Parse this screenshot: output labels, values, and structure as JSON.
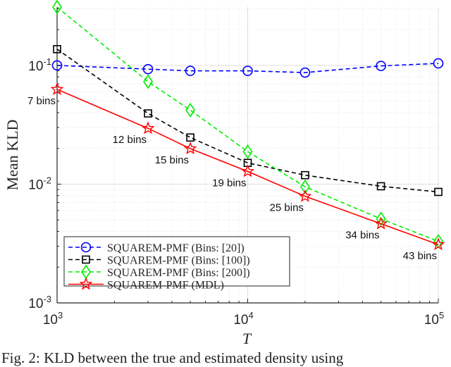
{
  "chart_data": {
    "type": "line",
    "xscale": "log",
    "yscale": "log",
    "xlabel": "T",
    "ylabel": "Mean KLD",
    "xlim": [
      1000,
      100000
    ],
    "ylim": [
      0.001,
      0.31
    ],
    "xticks": [
      {
        "v": 1000,
        "base": "10",
        "exp": "3"
      },
      {
        "v": 10000,
        "base": "10",
        "exp": "4"
      },
      {
        "v": 100000,
        "base": "10",
        "exp": "5"
      }
    ],
    "yticks": [
      {
        "v": 0.001,
        "base": "10",
        "exp": "-3"
      },
      {
        "v": 0.01,
        "base": "10",
        "exp": "-2"
      },
      {
        "v": 0.1,
        "base": "10",
        "exp": "-1"
      }
    ],
    "grid": true,
    "legend_position": "bottom-left",
    "x": [
      1000,
      3000,
      5000,
      10000,
      20000,
      50000,
      100000
    ],
    "series": [
      {
        "name": "SQUAREM-PMF (Bins: [20])",
        "color": "#0000ff",
        "dash": true,
        "marker": "circle",
        "values": [
          0.1,
          0.093,
          0.09,
          0.09,
          0.087,
          0.099,
          0.104
        ]
      },
      {
        "name": "SQUAREM-PMF (Bins: [100])",
        "color": "#000000",
        "dash": true,
        "marker": "square",
        "values": [
          0.137,
          0.0394,
          0.0247,
          0.0151,
          0.0119,
          0.0096,
          0.0086
        ]
      },
      {
        "name": "SQUAREM-PMF (Bins: [200])",
        "color": "#00ee00",
        "dash": true,
        "marker": "diamond",
        "values": [
          0.31,
          0.073,
          0.042,
          0.0188,
          0.0095,
          0.0051,
          0.0033
        ]
      },
      {
        "name": "SQUAREM-PMF (MDL)",
        "color": "#ff0000",
        "dash": false,
        "marker": "star",
        "values": [
          0.0628,
          0.0295,
          0.0199,
          0.0128,
          0.0079,
          0.00464,
          0.0031
        ]
      }
    ],
    "annotations": [
      "7 bins",
      "12 bins",
      "15 bins",
      "19 bins",
      "25 bins",
      "34 bins",
      "43 bins"
    ]
  },
  "caption": "Fig. 2: KLD between the true and estimated density using"
}
